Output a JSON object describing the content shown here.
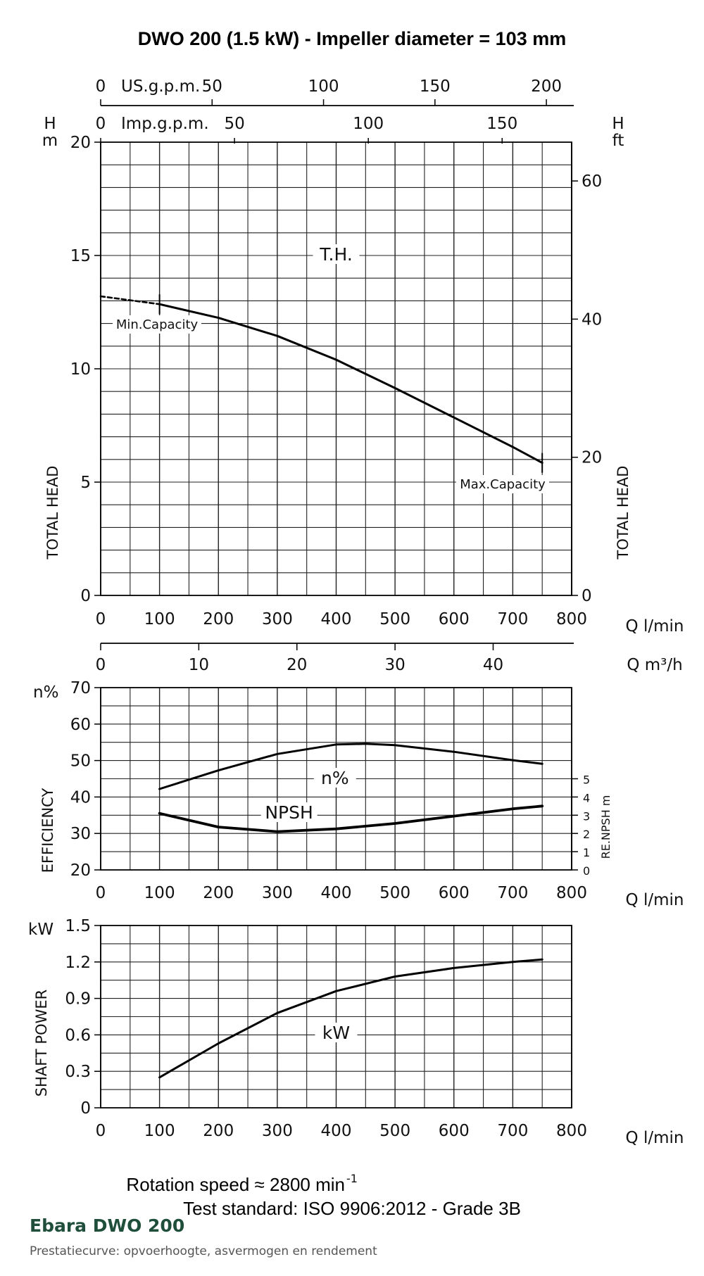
{
  "title": "DWO 200 (1.5 kW) - Impeller diameter = 103 mm",
  "top_axes": {
    "usgpm": {
      "label": "US.g.p.m.",
      "ticks": [
        "0",
        "50",
        "100",
        "150",
        "200"
      ]
    },
    "impgpm": {
      "label": "Imp.g.p.m.",
      "ticks": [
        "0",
        "50",
        "100",
        "150"
      ]
    }
  },
  "flow_ticks": [
    "0",
    "100",
    "200",
    "300",
    "400",
    "500",
    "600",
    "700",
    "800"
  ],
  "flow_unit": "Q l/min",
  "m3h": {
    "ticks": [
      "0",
      "10",
      "20",
      "30",
      "40"
    ],
    "unit": "Q m³/h"
  },
  "chart_data": [
    {
      "type": "line",
      "xlabel": "Q l/min",
      "ylabel": "TOTAL HEAD",
      "y_unit_left": "H m",
      "y_unit_right": "H ft",
      "xlim": [
        0,
        800
      ],
      "ylim": [
        0,
        20
      ],
      "y_ticks": [
        "0",
        "5",
        "10",
        "15",
        "20"
      ],
      "y2_ticks": [
        "0",
        "20",
        "40",
        "60"
      ],
      "grid": true,
      "series": [
        {
          "name": "T.H.",
          "x": [
            100,
            200,
            300,
            400,
            500,
            600,
            700,
            750
          ],
          "y": [
            12.85,
            12.25,
            11.45,
            10.4,
            9.15,
            7.85,
            6.55,
            5.85
          ]
        }
      ],
      "extrapolated": {
        "x": [
          0,
          100
        ],
        "y": [
          13.2,
          12.85
        ]
      },
      "annotations": {
        "min": "Min.Capacity",
        "max": "Max.Capacity"
      }
    },
    {
      "type": "line",
      "xlabel": "Q l/min",
      "ylabel": "EFFICIENCY",
      "y_unit_left": "n%",
      "y2label": "RE.NPSH m",
      "xlim": [
        0,
        800
      ],
      "ylim": [
        20,
        70
      ],
      "y_ticks": [
        "20",
        "30",
        "40",
        "50",
        "60",
        "70"
      ],
      "y2_ticks": [
        "0",
        "1",
        "2",
        "3",
        "4",
        "5"
      ],
      "grid": true,
      "series": [
        {
          "name": "n%",
          "x": [
            100,
            200,
            300,
            400,
            450,
            500,
            600,
            700,
            750
          ],
          "y": [
            42.2,
            47.3,
            51.8,
            54.4,
            54.6,
            54.2,
            52.4,
            50.1,
            49.1
          ]
        },
        {
          "name": "NPSH",
          "x": [
            100,
            200,
            300,
            400,
            500,
            600,
            700,
            750
          ],
          "y": [
            3.1,
            2.35,
            2.1,
            2.25,
            2.55,
            2.95,
            3.35,
            3.5
          ]
        }
      ]
    },
    {
      "type": "line",
      "xlabel": "Q l/min",
      "ylabel": "SHAFT POWER",
      "y_unit_left": "kW",
      "xlim": [
        0,
        800
      ],
      "ylim": [
        0,
        1.5
      ],
      "y_ticks": [
        "0",
        "0.3",
        "0.6",
        "0.9",
        "1.2",
        "1.5"
      ],
      "grid": true,
      "series": [
        {
          "name": "kW",
          "x": [
            100,
            200,
            300,
            400,
            500,
            600,
            700,
            750
          ],
          "y": [
            0.25,
            0.53,
            0.78,
            0.96,
            1.08,
            1.15,
            1.2,
            1.22
          ]
        }
      ]
    }
  ],
  "footer": {
    "speed_label": "Rotation speed ≈ 2800 min",
    "speed_exp": "-1",
    "standard": "Test standard: ISO 9906:2012 - Grade 3B"
  },
  "brand": "Ebara DWO 200",
  "subtitle": "Prestatiecurve: opvoerhoogte, asvermogen en rendement"
}
